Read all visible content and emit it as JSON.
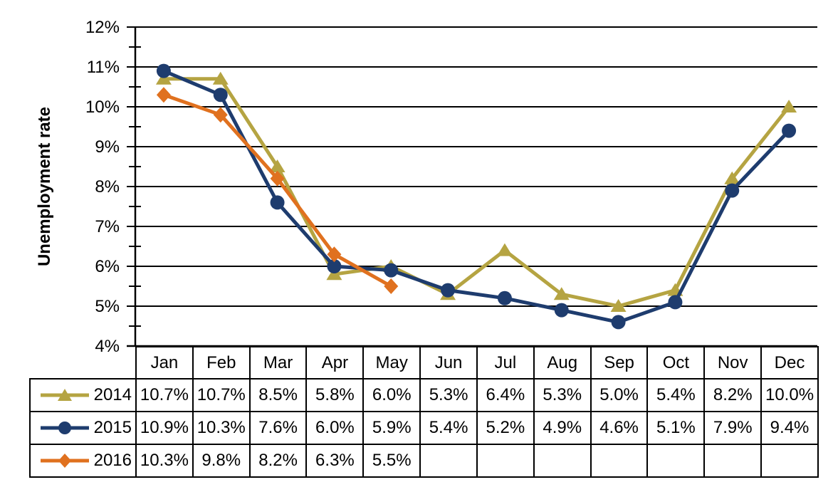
{
  "chart_data": {
    "type": "line",
    "title": "",
    "ylabel": "Unemployment rate",
    "xlabel": "",
    "categories": [
      "Jan",
      "Feb",
      "Mar",
      "Apr",
      "May",
      "Jun",
      "Jul",
      "Aug",
      "Sep",
      "Oct",
      "Nov",
      "Dec"
    ],
    "y_tick_labels": [
      "12%",
      "11%",
      "10%",
      "9%",
      "8%",
      "7%",
      "6%",
      "5%",
      "4%"
    ],
    "y_tick_values": [
      12,
      11,
      10,
      9,
      8,
      7,
      6,
      5,
      4
    ],
    "y_minor_tick_values": [
      11.5,
      10.5,
      9.5,
      8.5,
      7.5,
      6.5,
      5.5,
      4.5
    ],
    "ylim": [
      4,
      12
    ],
    "grid": "horizontal-major-on",
    "legend_position": "table-left-column",
    "axis_color": "#000000",
    "text_color": "#000000",
    "background_color": "#ffffff",
    "series": [
      {
        "name": "2014",
        "color": "#B5A442",
        "marker": "triangle",
        "values": [
          10.7,
          10.7,
          8.5,
          5.8,
          6.0,
          5.3,
          6.4,
          5.3,
          5.0,
          5.4,
          8.2,
          10.0
        ],
        "labels": [
          "10.7%",
          "10.7%",
          "8.5%",
          "5.8%",
          "6.0%",
          "5.3%",
          "6.4%",
          "5.3%",
          "5.0%",
          "5.4%",
          "8.2%",
          "10.0%"
        ]
      },
      {
        "name": "2015",
        "color": "#1E3C6E",
        "marker": "circle",
        "values": [
          10.9,
          10.3,
          7.6,
          6.0,
          5.9,
          5.4,
          5.2,
          4.9,
          4.6,
          5.1,
          7.9,
          9.4
        ],
        "labels": [
          "10.9%",
          "10.3%",
          "7.6%",
          "6.0%",
          "5.9%",
          "5.4%",
          "5.2%",
          "4.9%",
          "4.6%",
          "5.1%",
          "7.9%",
          "9.4%"
        ]
      },
      {
        "name": "2016",
        "color": "#E0711F",
        "marker": "diamond",
        "values": [
          10.3,
          9.8,
          8.2,
          6.3,
          5.5
        ],
        "labels": [
          "10.3%",
          "9.8%",
          "8.2%",
          "6.3%",
          "5.5%"
        ]
      }
    ]
  }
}
